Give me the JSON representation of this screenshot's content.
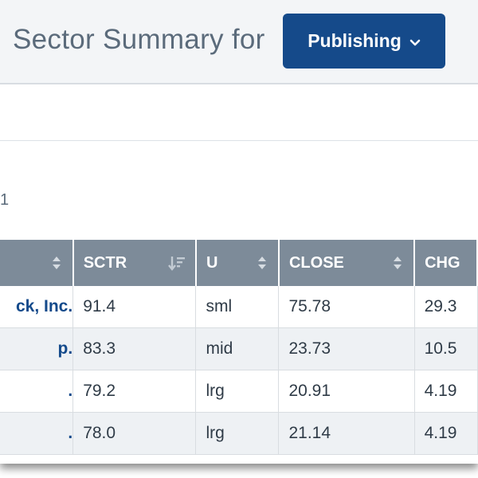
{
  "header": {
    "title": "Sector Summary for",
    "sector_button": {
      "label": "Publishing",
      "icon": "chevron-down-icon"
    }
  },
  "results_count_partial": "1",
  "table": {
    "columns": [
      {
        "key": "name",
        "label": "",
        "sort": "both"
      },
      {
        "key": "sctr",
        "label": "SCTR",
        "sort": "desc-active"
      },
      {
        "key": "u",
        "label": "U",
        "sort": "both"
      },
      {
        "key": "close",
        "label": "CLOSE",
        "sort": "both"
      },
      {
        "key": "chg",
        "label": "CHG",
        "sort": "none"
      }
    ],
    "rows": [
      {
        "name": "ck, Inc.",
        "sctr": "91.4",
        "u": "sml",
        "close": "75.78",
        "chg": "29.3"
      },
      {
        "name": "p.",
        "sctr": "83.3",
        "u": "mid",
        "close": "23.73",
        "chg": "10.5"
      },
      {
        "name": ".",
        "sctr": "79.2",
        "u": "lrg",
        "close": "20.91",
        "chg": "4.19"
      },
      {
        "name": ".",
        "sctr": "78.0",
        "u": "lrg",
        "close": "21.14",
        "chg": "4.19"
      }
    ]
  },
  "colors": {
    "header_bg": "#f3f5f7",
    "title_text": "#5b6b7b",
    "button_bg": "#154a8a",
    "table_header_bg": "#7d8b99",
    "link_text": "#144a8b",
    "alt_row_bg": "#eef1f4"
  }
}
